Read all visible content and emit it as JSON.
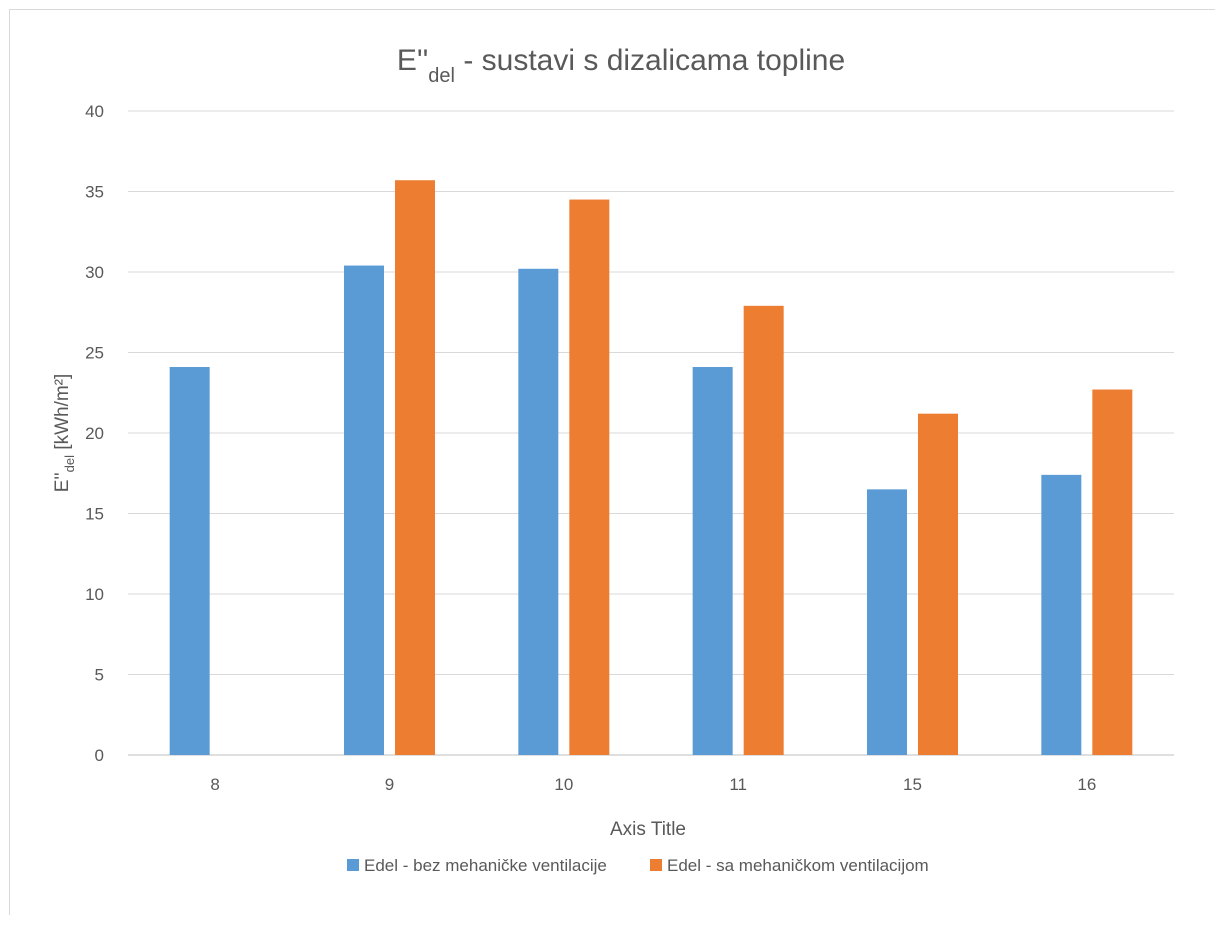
{
  "chart_data": {
    "type": "bar",
    "title": {
      "base": "E''",
      "sub": "del",
      "rest": " - sustavi s  dizalicama topline"
    },
    "ylabel": {
      "base": "E''",
      "sub": "del",
      "rest": " [kWh/m²]"
    },
    "xlabel": "Axis Title",
    "categories": [
      "8",
      "9",
      "10",
      "11",
      "15",
      "16"
    ],
    "ylim": [
      0,
      40
    ],
    "yticks": [
      0,
      5,
      10,
      15,
      20,
      25,
      30,
      35,
      40
    ],
    "grid": true,
    "legend_position": "bottom",
    "series": [
      {
        "name": "Edel - bez mehaničke ventilacije",
        "color": "#5b9bd5",
        "values": [
          24.1,
          30.4,
          30.2,
          24.1,
          16.5,
          17.4
        ]
      },
      {
        "name": "Edel - sa mehaničkom ventilacijom",
        "color": "#ed7d31",
        "values": [
          null,
          35.7,
          34.5,
          27.9,
          21.2,
          22.7
        ]
      }
    ]
  }
}
